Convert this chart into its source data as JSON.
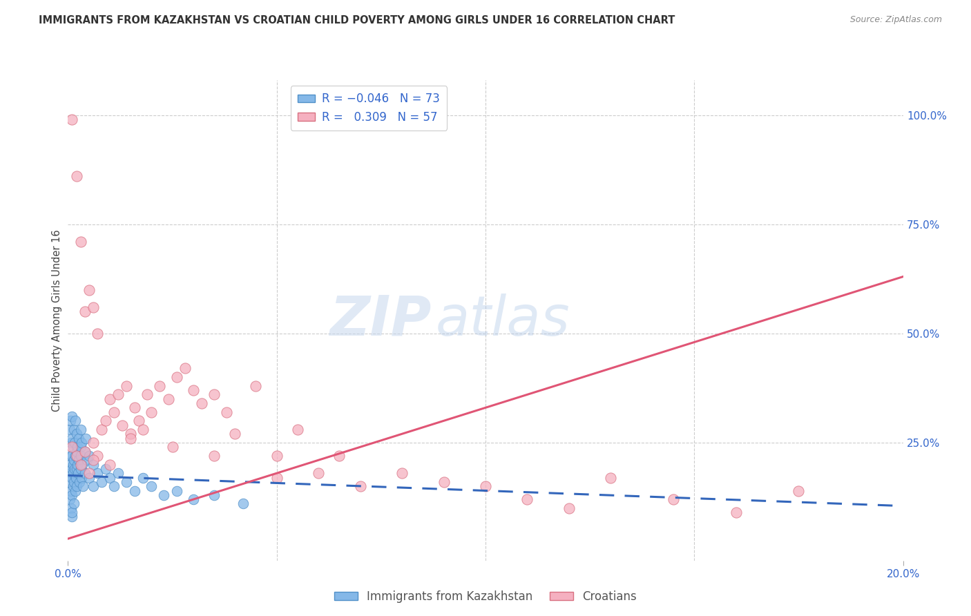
{
  "title": "IMMIGRANTS FROM KAZAKHSTAN VS CROATIAN CHILD POVERTY AMONG GIRLS UNDER 16 CORRELATION CHART",
  "source": "Source: ZipAtlas.com",
  "ylabel": "Child Poverty Among Girls Under 16",
  "xlim": [
    0.0,
    0.2
  ],
  "ylim": [
    -0.02,
    1.08
  ],
  "ytick_right_labels": [
    "100.0%",
    "75.0%",
    "50.0%",
    "25.0%"
  ],
  "ytick_right_positions": [
    1.0,
    0.75,
    0.5,
    0.25
  ],
  "legend_label1": "Immigrants from Kazakhstan",
  "legend_label2": "Croatians",
  "watermark_zip": "ZIP",
  "watermark_atlas": "atlas",
  "blue_color": "#85b8e8",
  "blue_edge": "#5090c8",
  "pink_color": "#f5b0c0",
  "pink_edge": "#d87080",
  "background_color": "#ffffff",
  "grid_color": "#cccccc",
  "title_fontsize": 10.5,
  "source_fontsize": 9,
  "blue_scatter_x": [
    0.0003,
    0.0004,
    0.0005,
    0.0005,
    0.0006,
    0.0006,
    0.0007,
    0.0007,
    0.0008,
    0.0008,
    0.0009,
    0.0009,
    0.001,
    0.001,
    0.001,
    0.001,
    0.001,
    0.001,
    0.0012,
    0.0012,
    0.0013,
    0.0013,
    0.0014,
    0.0014,
    0.0015,
    0.0015,
    0.0016,
    0.0016,
    0.0017,
    0.0018,
    0.0018,
    0.0019,
    0.002,
    0.002,
    0.002,
    0.002,
    0.0022,
    0.0023,
    0.0024,
    0.0025,
    0.0026,
    0.0027,
    0.003,
    0.003,
    0.003,
    0.003,
    0.0032,
    0.0033,
    0.0034,
    0.0035,
    0.004,
    0.004,
    0.0042,
    0.0045,
    0.005,
    0.005,
    0.006,
    0.006,
    0.007,
    0.008,
    0.009,
    0.01,
    0.011,
    0.012,
    0.014,
    0.016,
    0.018,
    0.02,
    0.023,
    0.026,
    0.03,
    0.035,
    0.042
  ],
  "blue_scatter_y": [
    0.16,
    0.12,
    0.2,
    0.28,
    0.22,
    0.3,
    0.18,
    0.1,
    0.25,
    0.14,
    0.08,
    0.19,
    0.22,
    0.17,
    0.13,
    0.09,
    0.26,
    0.31,
    0.2,
    0.15,
    0.24,
    0.18,
    0.11,
    0.28,
    0.21,
    0.16,
    0.19,
    0.25,
    0.14,
    0.22,
    0.3,
    0.17,
    0.23,
    0.19,
    0.15,
    0.27,
    0.2,
    0.24,
    0.18,
    0.26,
    0.21,
    0.16,
    0.24,
    0.19,
    0.28,
    0.22,
    0.17,
    0.25,
    0.2,
    0.15,
    0.23,
    0.18,
    0.26,
    0.21,
    0.22,
    0.17,
    0.2,
    0.15,
    0.18,
    0.16,
    0.19,
    0.17,
    0.15,
    0.18,
    0.16,
    0.14,
    0.17,
    0.15,
    0.13,
    0.14,
    0.12,
    0.13,
    0.11
  ],
  "pink_scatter_x": [
    0.001,
    0.001,
    0.002,
    0.002,
    0.003,
    0.003,
    0.004,
    0.004,
    0.005,
    0.005,
    0.006,
    0.006,
    0.007,
    0.007,
    0.008,
    0.009,
    0.01,
    0.01,
    0.011,
    0.012,
    0.013,
    0.014,
    0.015,
    0.016,
    0.017,
    0.018,
    0.019,
    0.02,
    0.022,
    0.024,
    0.026,
    0.028,
    0.03,
    0.032,
    0.035,
    0.038,
    0.04,
    0.045,
    0.05,
    0.055,
    0.06,
    0.065,
    0.07,
    0.08,
    0.09,
    0.1,
    0.11,
    0.12,
    0.13,
    0.145,
    0.16,
    0.175,
    0.006,
    0.015,
    0.025,
    0.035,
    0.05
  ],
  "pink_scatter_y": [
    0.99,
    0.24,
    0.86,
    0.22,
    0.71,
    0.2,
    0.55,
    0.23,
    0.6,
    0.18,
    0.56,
    0.25,
    0.5,
    0.22,
    0.28,
    0.3,
    0.35,
    0.2,
    0.32,
    0.36,
    0.29,
    0.38,
    0.27,
    0.33,
    0.3,
    0.28,
    0.36,
    0.32,
    0.38,
    0.35,
    0.4,
    0.42,
    0.37,
    0.34,
    0.36,
    0.32,
    0.27,
    0.38,
    0.22,
    0.28,
    0.18,
    0.22,
    0.15,
    0.18,
    0.16,
    0.15,
    0.12,
    0.1,
    0.17,
    0.12,
    0.09,
    0.14,
    0.21,
    0.26,
    0.24,
    0.22,
    0.17
  ],
  "blue_trend_x": [
    0.0,
    0.2
  ],
  "blue_trend_y": [
    0.175,
    0.105
  ],
  "pink_trend_x": [
    0.0,
    0.2
  ],
  "pink_trend_y": [
    0.03,
    0.63
  ]
}
